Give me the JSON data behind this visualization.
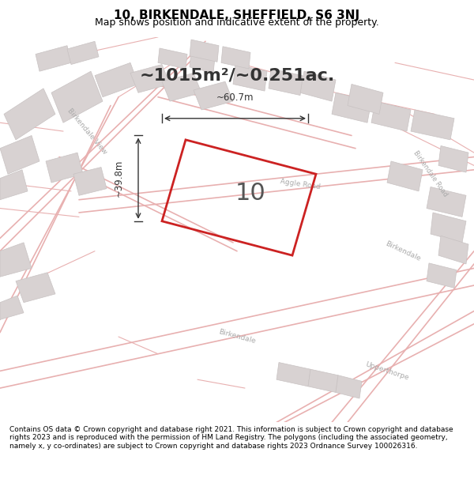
{
  "title": "10, BIRKENDALE, SHEFFIELD, S6 3NJ",
  "subtitle": "Map shows position and indicative extent of the property.",
  "area_label": "~1015m²/~0.251ac.",
  "plot_number": "10",
  "dim_width": "~60.7m",
  "dim_height": "~39.8m",
  "footer": "Contains OS data © Crown copyright and database right 2021. This information is subject to Crown copyright and database rights 2023 and is reproduced with the permission of HM Land Registry. The polygons (including the associated geometry, namely x, y co-ordinates) are subject to Crown copyright and database rights 2023 Ordnance Survey 100026316.",
  "bg_color": "#f0eeee",
  "map_bg": "#f5f3f3",
  "road_color_light": "#e8c8c8",
  "road_color_dark": "#d4a0a0",
  "plot_color": "#cc2222",
  "plot_fill": "#f5f3f3",
  "building_color": "#d8d0d0",
  "title_color": "#000000",
  "footer_color": "#000000"
}
